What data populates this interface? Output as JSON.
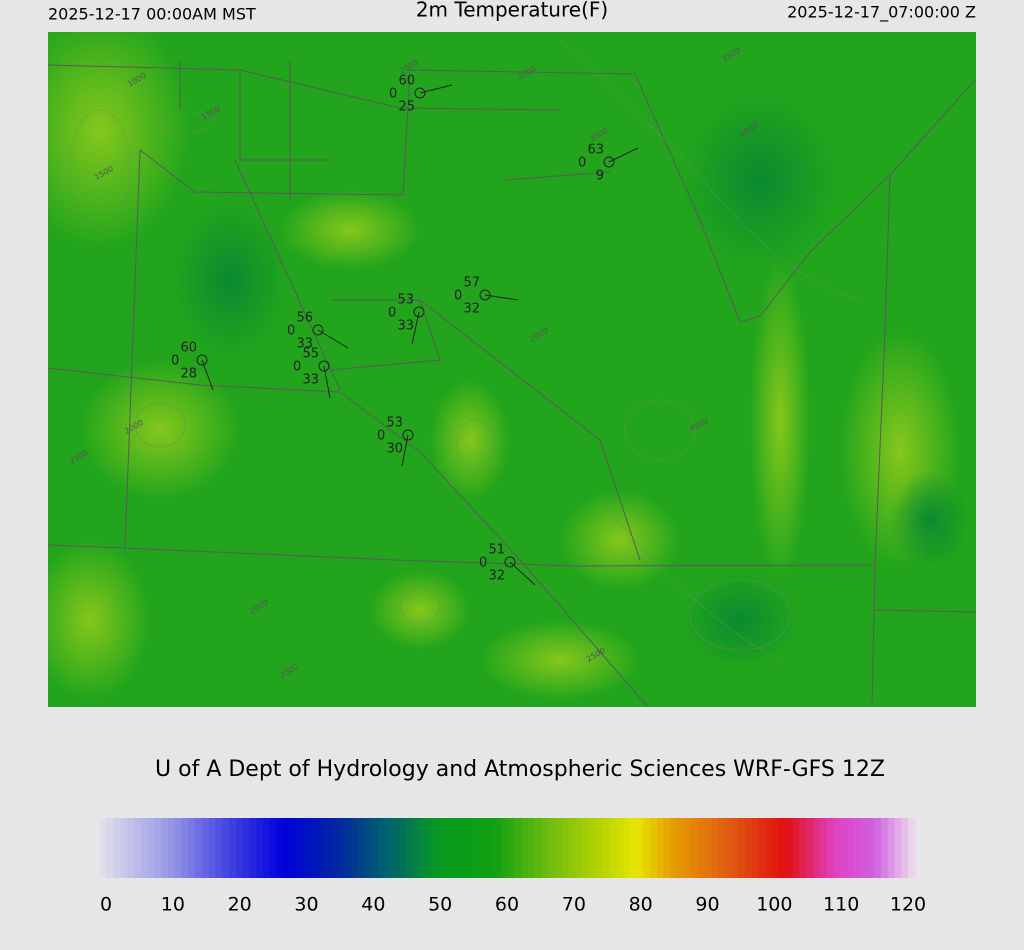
{
  "header": {
    "left": "2025-12-17 00:00AM MST",
    "title": "2m Temperature(F)",
    "right": "2025-12-17_07:00:00 Z"
  },
  "stations": [
    {
      "temp": "60",
      "cloud": "0",
      "dewpoint": "25"
    },
    {
      "temp": "63",
      "cloud": "0",
      "dewpoint": "9"
    },
    {
      "temp": "57",
      "cloud": "0",
      "dewpoint": "32"
    },
    {
      "temp": "53",
      "cloud": "0",
      "dewpoint": "33"
    },
    {
      "temp": "56",
      "cloud": "0",
      "dewpoint": "33"
    },
    {
      "temp": "55",
      "cloud": "0",
      "dewpoint": "33"
    },
    {
      "temp": "60",
      "cloud": "0",
      "dewpoint": "28"
    },
    {
      "temp": "53",
      "cloud": "0",
      "dewpoint": "30"
    },
    {
      "temp": "51",
      "cloud": "0",
      "dewpoint": "32"
    }
  ],
  "contour_labels": [
    "1000",
    "1500",
    "1500",
    "2000",
    "3000",
    "3500",
    "2500",
    "2000",
    "2000",
    "2000",
    "2000",
    "3500",
    "4000",
    "4000",
    "2500"
  ],
  "credit": "U of A Dept of Hydrology and Atmospheric Sciences WRF-GFS 12Z",
  "colorbar": {
    "range": [
      0,
      120
    ],
    "ticks": [
      0,
      10,
      20,
      30,
      40,
      50,
      60,
      70,
      80,
      90,
      100,
      110,
      120
    ]
  }
}
